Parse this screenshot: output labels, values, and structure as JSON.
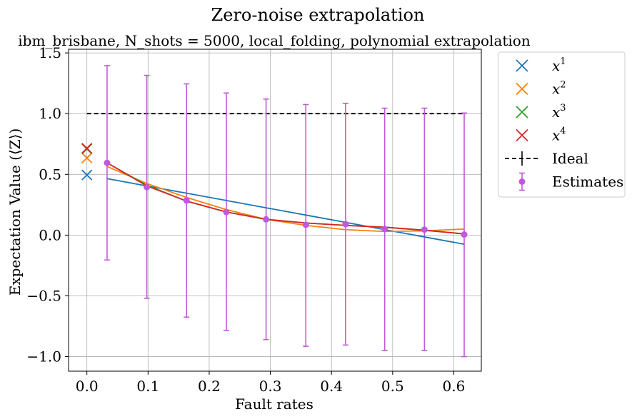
{
  "chart_data": {
    "type": "line",
    "title": "Zero-noise extrapolation",
    "subtitle": "ibm_brisbane, N_shots = 5000, local_folding, polynomial extrapolation",
    "xlabel": "Fault rates",
    "ylabel": "Expectation Value (⟨Z⟩)",
    "xlim": [
      -0.03,
      0.645
    ],
    "ylim": [
      -1.12,
      1.53
    ],
    "grid": true,
    "legend_position": "outside-right",
    "x_ticks": [
      {
        "value": 0.0,
        "label": "0.0"
      },
      {
        "value": 0.1,
        "label": "0.1"
      },
      {
        "value": 0.2,
        "label": "0.2"
      },
      {
        "value": 0.3,
        "label": "0.3"
      },
      {
        "value": 0.4,
        "label": "0.4"
      },
      {
        "value": 0.5,
        "label": "0.5"
      },
      {
        "value": 0.6,
        "label": "0.6"
      }
    ],
    "y_ticks": [
      {
        "value": -1.0,
        "label": "−1.0"
      },
      {
        "value": -0.5,
        "label": "−0.5"
      },
      {
        "value": 0.0,
        "label": "0.0"
      },
      {
        "value": 0.5,
        "label": "0.5"
      },
      {
        "value": 1.0,
        "label": "1.0"
      },
      {
        "value": 1.5,
        "label": "1.5"
      }
    ],
    "ideal": {
      "name": "Ideal",
      "color": "#000000",
      "x": [
        0.0,
        0.617
      ],
      "y": [
        1.0,
        1.0
      ]
    },
    "estimates": {
      "name": "Estimates",
      "color": "#bf5ad8",
      "x": [
        0.033,
        0.098,
        0.163,
        0.228,
        0.293,
        0.358,
        0.423,
        0.487,
        0.552,
        0.617
      ],
      "y": [
        0.595,
        0.395,
        0.285,
        0.19,
        0.13,
        0.085,
        0.09,
        0.05,
        0.045,
        0.005
      ],
      "err_low": [
        -0.205,
        -0.52,
        -0.675,
        -0.785,
        -0.86,
        -0.915,
        -0.905,
        -0.95,
        -0.95,
        -1.0
      ],
      "err_high": [
        1.395,
        1.315,
        1.245,
        1.17,
        1.12,
        1.075,
        1.085,
        1.045,
        1.045,
        1.005
      ]
    },
    "series": [
      {
        "name": "x¹",
        "base": "x",
        "exp": "1",
        "color": "#1f77b4",
        "x": [
          0.033,
          0.098,
          0.163,
          0.228,
          0.293,
          0.358,
          0.423,
          0.487,
          0.552,
          0.617
        ],
        "y": [
          0.465,
          0.405,
          0.345,
          0.285,
          0.225,
          0.165,
          0.105,
          0.045,
          -0.015,
          -0.075
        ],
        "extrapolated": {
          "x": 0.0,
          "y": 0.495
        }
      },
      {
        "name": "x²",
        "base": "x",
        "exp": "2",
        "color": "#ff7f0e",
        "x": [
          0.033,
          0.098,
          0.163,
          0.228,
          0.293,
          0.358,
          0.423,
          0.487,
          0.552,
          0.617
        ],
        "y": [
          0.565,
          0.425,
          0.31,
          0.21,
          0.13,
          0.08,
          0.045,
          0.03,
          0.035,
          0.05
        ],
        "extrapolated": {
          "x": 0.0,
          "y": 0.635
        }
      },
      {
        "name": "x³",
        "base": "x",
        "exp": "3",
        "color": "#2ca02c",
        "x": [
          0.033,
          0.098,
          0.163,
          0.228,
          0.293,
          0.358,
          0.423,
          0.487,
          0.552,
          0.617
        ],
        "y": [
          0.595,
          0.41,
          0.28,
          0.19,
          0.13,
          0.1,
          0.08,
          0.065,
          0.04,
          0.01
        ],
        "extrapolated": {
          "x": 0.0,
          "y": 0.71
        }
      },
      {
        "name": "x⁴",
        "base": "x",
        "exp": "4",
        "color": "#d62728",
        "x": [
          0.033,
          0.098,
          0.163,
          0.228,
          0.293,
          0.358,
          0.423,
          0.487,
          0.552,
          0.617
        ],
        "y": [
          0.595,
          0.405,
          0.28,
          0.19,
          0.13,
          0.1,
          0.08,
          0.065,
          0.04,
          0.01
        ],
        "extrapolated": {
          "x": 0.0,
          "y": 0.715
        }
      }
    ]
  }
}
